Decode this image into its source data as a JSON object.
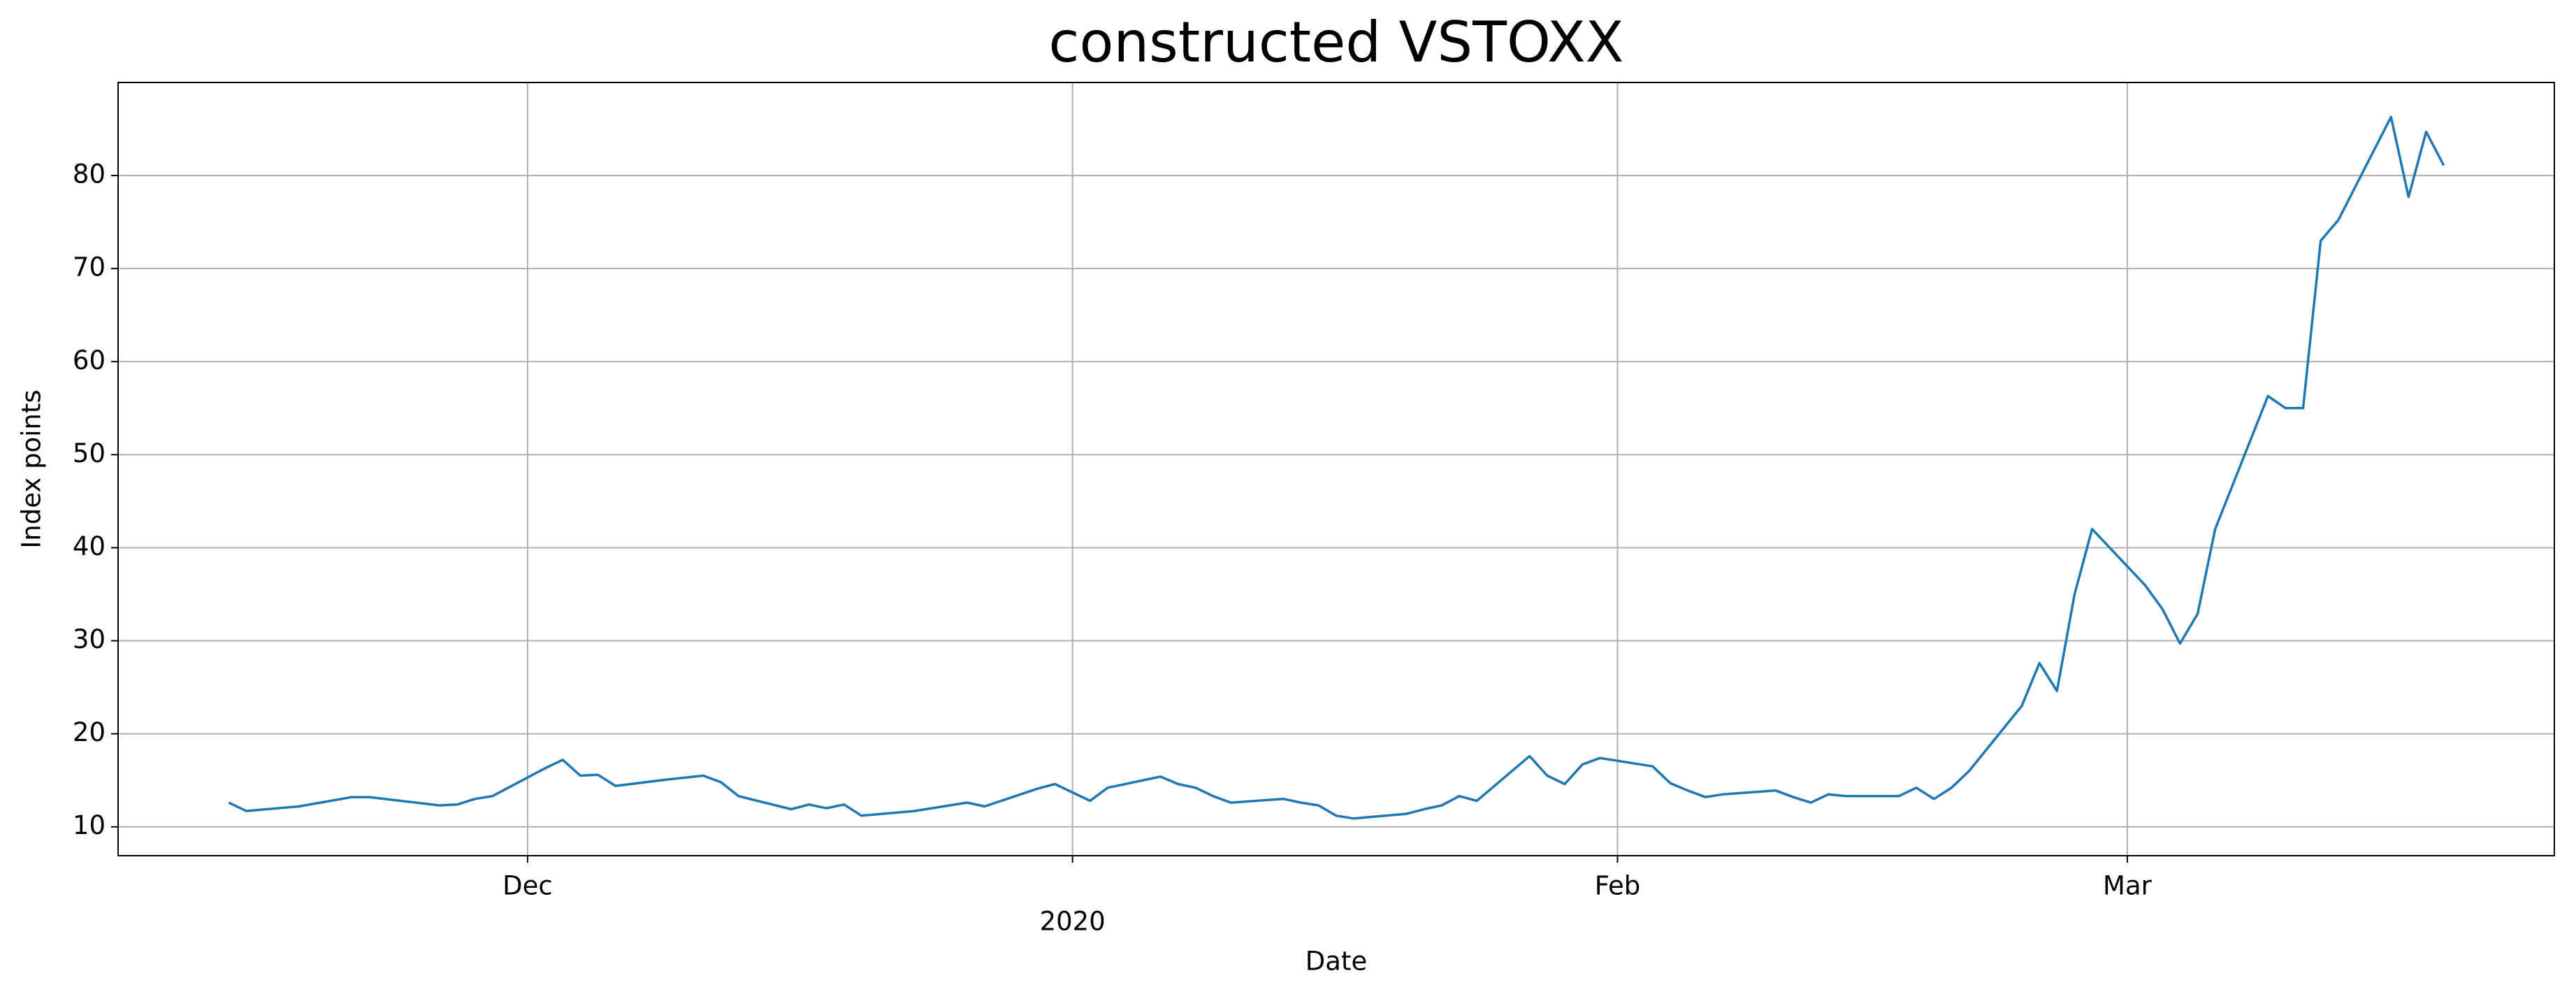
{
  "chart_data": {
    "type": "line",
    "title": "constructed VSTOXX",
    "x_label": "Date",
    "y_label": "Index points",
    "x": [
      "2019-11-14",
      "2019-11-15",
      "2019-11-18",
      "2019-11-21",
      "2019-11-22",
      "2019-11-26",
      "2019-11-27",
      "2019-11-28",
      "2019-11-29",
      "2019-12-02",
      "2019-12-03",
      "2019-12-04",
      "2019-12-05",
      "2019-12-06",
      "2019-12-09",
      "2019-12-10",
      "2019-12-11",
      "2019-12-12",
      "2019-12-13",
      "2019-12-16",
      "2019-12-17",
      "2019-12-18",
      "2019-12-19",
      "2019-12-20",
      "2019-12-23",
      "2019-12-26",
      "2019-12-27",
      "2019-12-30",
      "2019-12-31",
      "2020-01-02",
      "2020-01-03",
      "2020-01-06",
      "2020-01-07",
      "2020-01-08",
      "2020-01-09",
      "2020-01-10",
      "2020-01-13",
      "2020-01-14",
      "2020-01-15",
      "2020-01-16",
      "2020-01-17",
      "2020-01-20",
      "2020-01-21",
      "2020-01-22",
      "2020-01-23",
      "2020-01-24",
      "2020-01-27",
      "2020-01-28",
      "2020-01-29",
      "2020-01-30",
      "2020-01-31",
      "2020-02-03",
      "2020-02-04",
      "2020-02-05",
      "2020-02-06",
      "2020-02-07",
      "2020-02-10",
      "2020-02-11",
      "2020-02-12",
      "2020-02-13",
      "2020-02-14",
      "2020-02-17",
      "2020-02-18",
      "2020-02-19",
      "2020-02-20",
      "2020-02-21",
      "2020-02-24",
      "2020-02-25",
      "2020-02-26",
      "2020-02-27",
      "2020-02-28",
      "2020-03-02",
      "2020-03-03",
      "2020-03-04",
      "2020-03-05",
      "2020-03-06",
      "2020-03-09",
      "2020-03-10",
      "2020-03-11",
      "2020-03-12",
      "2020-03-13",
      "2020-03-16",
      "2020-03-17",
      "2020-03-18",
      "2020-03-19"
    ],
    "series": [
      {
        "name": "VSTOXX",
        "color": "#1f77b4",
        "values": [
          12.6,
          11.7,
          12.2,
          13.2,
          13.2,
          12.3,
          12.4,
          13.0,
          13.3,
          16.3,
          17.2,
          15.5,
          15.6,
          14.4,
          15.1,
          15.3,
          15.5,
          14.8,
          13.3,
          11.9,
          12.4,
          12.0,
          12.4,
          11.2,
          11.7,
          12.6,
          12.2,
          14.1,
          14.6,
          12.8,
          14.2,
          15.4,
          14.6,
          14.2,
          13.3,
          12.6,
          13.0,
          12.6,
          12.3,
          11.2,
          10.9,
          11.4,
          11.9,
          12.3,
          13.3,
          12.8,
          17.6,
          15.5,
          14.6,
          16.7,
          17.4,
          16.5,
          14.7,
          13.9,
          13.2,
          13.5,
          13.9,
          13.2,
          12.6,
          13.5,
          13.3,
          13.3,
          14.2,
          13.0,
          14.2,
          16.0,
          23.0,
          27.6,
          24.6,
          35.0,
          42.0,
          36.0,
          33.4,
          29.7,
          32.9,
          42.0,
          56.3,
          55.0,
          55.0,
          73.0,
          75.2,
          86.3,
          77.7,
          84.7,
          81.1
        ]
      }
    ],
    "xlim": [
      "2019-11-07T17:00Z",
      "2020-03-25T07:00Z"
    ],
    "xticks": [
      {
        "value": "2019-12-01",
        "label": "Dec"
      },
      {
        "value": "2020-01-01",
        "label": "2020"
      },
      {
        "value": "2020-02-01",
        "label": "Feb"
      },
      {
        "value": "2020-03-01",
        "label": "Mar"
      }
    ],
    "ylim": [
      6.9,
      90.0
    ],
    "yticks": [
      10,
      20,
      30,
      40,
      50,
      60,
      70,
      80
    ],
    "grid": true
  }
}
